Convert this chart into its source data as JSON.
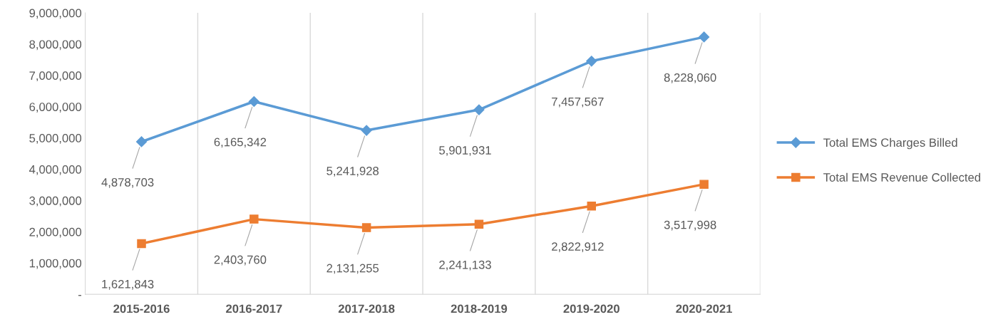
{
  "chart_data": {
    "type": "line",
    "categories": [
      "2015-2016",
      "2016-2017",
      "2017-2018",
      "2018-2019",
      "2019-2020",
      "2020-2021"
    ],
    "series": [
      {
        "name": "Total EMS Charges Billed",
        "color": "#5b9bd5",
        "marker": "diamond",
        "values": [
          4878703,
          6165342,
          5241928,
          5901931,
          7457567,
          8228060
        ],
        "value_labels": [
          "4,878,703",
          "6,165,342",
          "5,241,928",
          "5,901,931",
          "7,457,567",
          "8,228,060"
        ]
      },
      {
        "name": "Total EMS Revenue Collected",
        "color": "#ed7d31",
        "marker": "square",
        "values": [
          1621843,
          2403760,
          2131255,
          2241133,
          2822912,
          3517998
        ],
        "value_labels": [
          "1,621,843",
          "2,403,760",
          "2,131,255",
          "2,241,133",
          "2,822,912",
          "3,517,998"
        ]
      }
    ],
    "ylim": [
      0,
      9000000
    ],
    "yticks": [
      {
        "value": 0,
        "label": "-"
      },
      {
        "value": 1000000,
        "label": "1,000,000"
      },
      {
        "value": 2000000,
        "label": "2,000,000"
      },
      {
        "value": 3000000,
        "label": "3,000,000"
      },
      {
        "value": 4000000,
        "label": "4,000,000"
      },
      {
        "value": 5000000,
        "label": "5,000,000"
      },
      {
        "value": 6000000,
        "label": "6,000,000"
      },
      {
        "value": 7000000,
        "label": "7,000,000"
      },
      {
        "value": 8000000,
        "label": "8,000,000"
      },
      {
        "value": 9000000,
        "label": "9,000,000"
      }
    ],
    "grid": "x",
    "legend": "right",
    "line_style": "solid"
  }
}
